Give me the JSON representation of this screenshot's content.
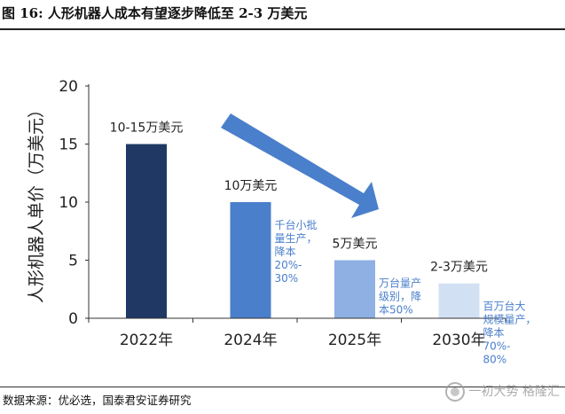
{
  "figure": {
    "title": "图 16: 人形机器人成本有望逐步降低至 2-3 万美元",
    "source": "数据来源：优必选，国泰君安证券研究",
    "watermark": "一初大势 格隆汇"
  },
  "colors": {
    "bars": [
      "#1f3864",
      "#4a7fcb",
      "#8eb0e3",
      "#d2e0f3"
    ],
    "note_text": "#4a7fcb",
    "arrow": "#4a7fcb",
    "axis": "#333333"
  },
  "chart_data": {
    "type": "bar",
    "categories": [
      "2022年",
      "2024年",
      "2025年",
      "2030年"
    ],
    "values": [
      15,
      10,
      5,
      3
    ],
    "value_labels": [
      "10-15万美元",
      "10万美元",
      "5万美元",
      "2-3万美元"
    ],
    "notes": [
      "",
      "千台小批\n量生产，\n降本\n20%-\n30%",
      "万台量产\n级别，降\n本50%",
      "百万台大\n规模量产，\n降本\n70%-\n80%"
    ],
    "title": "",
    "xlabel": "",
    "ylabel": "人形机器人单价（万美元）",
    "ylim": [
      0,
      20
    ],
    "yticks": [
      0,
      5,
      10,
      15,
      20
    ],
    "grid": false,
    "annotations": [
      "downward trend arrow"
    ]
  }
}
